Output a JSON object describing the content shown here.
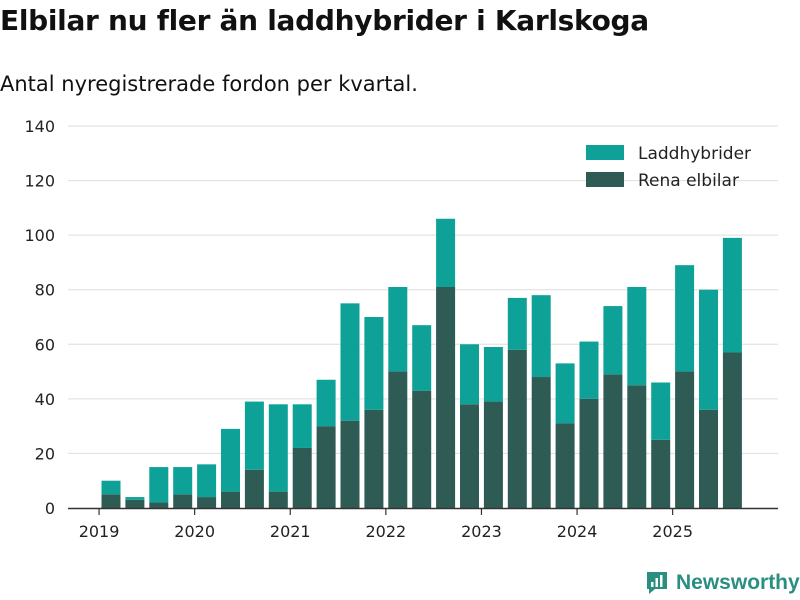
{
  "chart_data": {
    "type": "bar",
    "stacked": true,
    "title": "Elbilar nu fler än laddhybrider i Karlskoga",
    "subtitle": "Antal nyregistrerade fordon per kvartal.",
    "xlabel": "",
    "ylabel": "",
    "ylim": [
      0,
      140
    ],
    "yticks": [
      0,
      20,
      40,
      60,
      80,
      100,
      120,
      140
    ],
    "grid": true,
    "legend_position": "top-right",
    "categories": [
      "2019-Q2",
      "2019-Q3",
      "2019-Q4",
      "2020-Q1",
      "2020-Q2",
      "2020-Q3",
      "2020-Q4",
      "2021-Q1",
      "2021-Q2",
      "2021-Q3",
      "2021-Q4",
      "2022-Q1",
      "2022-Q2",
      "2022-Q3",
      "2022-Q4",
      "2023-Q1",
      "2023-Q2",
      "2023-Q3",
      "2023-Q4",
      "2024-Q1",
      "2024-Q2",
      "2024-Q3",
      "2024-Q4",
      "2025-Q1",
      "2025-Q2",
      "2025-Q3",
      "2025-Q4"
    ],
    "x_tick_labels": [
      {
        "label": "2019",
        "slot": -0.5
      },
      {
        "label": "2020",
        "slot": 3.5
      },
      {
        "label": "2021",
        "slot": 7.5
      },
      {
        "label": "2022",
        "slot": 11.5
      },
      {
        "label": "2023",
        "slot": 15.5
      },
      {
        "label": "2024",
        "slot": 19.5
      },
      {
        "label": "2025",
        "slot": 23.5
      }
    ],
    "series": [
      {
        "name": "Rena elbilar",
        "color": "#2f5b55",
        "values": [
          5,
          3,
          2,
          5,
          4,
          6,
          14,
          6,
          22,
          30,
          32,
          36,
          50,
          43,
          81,
          38,
          39,
          58,
          48,
          31,
          40,
          49,
          45,
          25,
          50,
          36,
          57
        ]
      },
      {
        "name": "Laddhybrider",
        "color": "#0ea197",
        "values": [
          5,
          1,
          13,
          10,
          12,
          23,
          25,
          32,
          16,
          17,
          43,
          34,
          31,
          24,
          25,
          22,
          20,
          19,
          30,
          22,
          21,
          25,
          36,
          21,
          39,
          44,
          42
        ]
      }
    ],
    "legend_order": [
      "Laddhybrider",
      "Rena elbilar"
    ]
  },
  "brand": {
    "name": "Newsworthy",
    "color": "#2a8f80"
  },
  "colors": {
    "grid": "#dedede",
    "axis": "#333333"
  }
}
